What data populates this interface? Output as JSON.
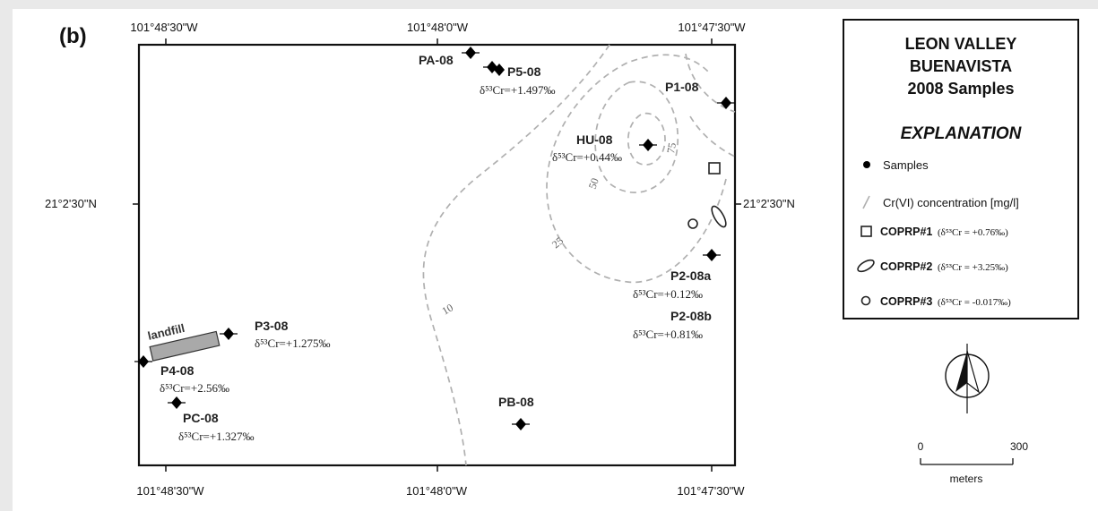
{
  "panel_label": "(b)",
  "coordinates": {
    "top_left": "101°48'30\"W",
    "top_mid": "101°48'0\"W",
    "top_right": "101°47'30\"W",
    "bottom_left": "101°48'30\"W",
    "bottom_mid": "101°48'0\"W",
    "bottom_right": "101°47'30\"W",
    "lat_left": "21°2'30\"N",
    "lat_right": "21°2'30\"N"
  },
  "contours": {
    "labels": [
      "10",
      "25",
      "50",
      "75"
    ],
    "color": "#b0b0b0"
  },
  "landfill": {
    "label": "landfill",
    "color": "#a9a9a9"
  },
  "samples": [
    {
      "name": "PA-08",
      "isotope": ""
    },
    {
      "name": "P5-08",
      "isotope": "δ⁵³Cr=+1.497‰"
    },
    {
      "name": "P1-08",
      "isotope": ""
    },
    {
      "name": "HU-08",
      "isotope": "δ⁵³Cr=+0.44‰"
    },
    {
      "name": "P2-08a",
      "isotope": "δ⁵³Cr=+0.12‰"
    },
    {
      "name": "P2-08b",
      "isotope": "δ⁵³Cr=+0.81‰"
    },
    {
      "name": "P3-08",
      "isotope": "δ⁵³Cr=+1.275‰"
    },
    {
      "name": "P4-08",
      "isotope": "δ⁵³Cr=+2.56‰"
    },
    {
      "name": "PC-08",
      "isotope": "δ⁵³Cr=+1.327‰"
    },
    {
      "name": "PB-08",
      "isotope": ""
    }
  ],
  "legend": {
    "title_lines": [
      "LEON VALLEY",
      "BUENAVISTA",
      "2008 Samples"
    ],
    "explanation": "EXPLANATION",
    "samples_label": "Samples",
    "concentration_label": "Cr(VI) concentration [mg/l]",
    "coprp": [
      {
        "name": "COPRP#1",
        "value": "(δ⁵³Cr = +0.76‰)",
        "symbol": "square"
      },
      {
        "name": "COPRP#2",
        "value": "(δ⁵³Cr = +3.25‰)",
        "symbol": "ellipse"
      },
      {
        "name": "COPRP#3",
        "value": "(δ⁵³Cr = -0.017‰)",
        "symbol": "circle"
      }
    ]
  },
  "north_arrow": {
    "icon": "north-arrow-icon"
  },
  "scale_bar": {
    "start": "0",
    "end": "300",
    "unit": "meters"
  }
}
